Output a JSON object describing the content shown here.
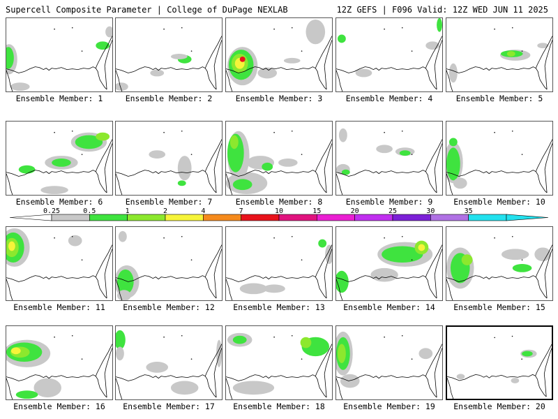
{
  "header": {
    "title": "Supercell Composite Parameter | College of DuPage NEXLAB",
    "run_info": "12Z GEFS | F096 Valid: 12Z WED JUN 11 2025"
  },
  "colorbar": {
    "ticks": [
      "0.25",
      "0.5",
      "1",
      "2",
      "4",
      "7",
      "10",
      "15",
      "20",
      "25",
      "30",
      "35"
    ],
    "colors": [
      "#c8c8c8",
      "#3fe33f",
      "#8ce82e",
      "#f6f43a",
      "#f58a1c",
      "#e8121b",
      "#e0137e",
      "#ea1fd2",
      "#c02fef",
      "#7c20d7",
      "#b071e4",
      "#22e1ee"
    ]
  },
  "panels": [
    {
      "label": "Ensemble Member: 1"
    },
    {
      "label": "Ensemble Member: 2"
    },
    {
      "label": "Ensemble Member: 3"
    },
    {
      "label": "Ensemble Member: 4"
    },
    {
      "label": "Ensemble Member: 5"
    },
    {
      "label": "Ensemble Member: 6"
    },
    {
      "label": "Ensemble Member: 7"
    },
    {
      "label": "Ensemble Member: 8"
    },
    {
      "label": "Ensemble Member: 9"
    },
    {
      "label": "Ensemble Member: 10"
    },
    {
      "label": "Ensemble Member: 11"
    },
    {
      "label": "Ensemble Member: 12"
    },
    {
      "label": "Ensemble Member: 13"
    },
    {
      "label": "Ensemble Member: 14"
    },
    {
      "label": "Ensemble Member: 15"
    },
    {
      "label": "Ensemble Member: 16"
    },
    {
      "label": "Ensemble Member: 17"
    },
    {
      "label": "Ensemble Member: 18"
    },
    {
      "label": "Ensemble Member: 19"
    },
    {
      "label": "Ensemble Member: 20"
    }
  ]
}
